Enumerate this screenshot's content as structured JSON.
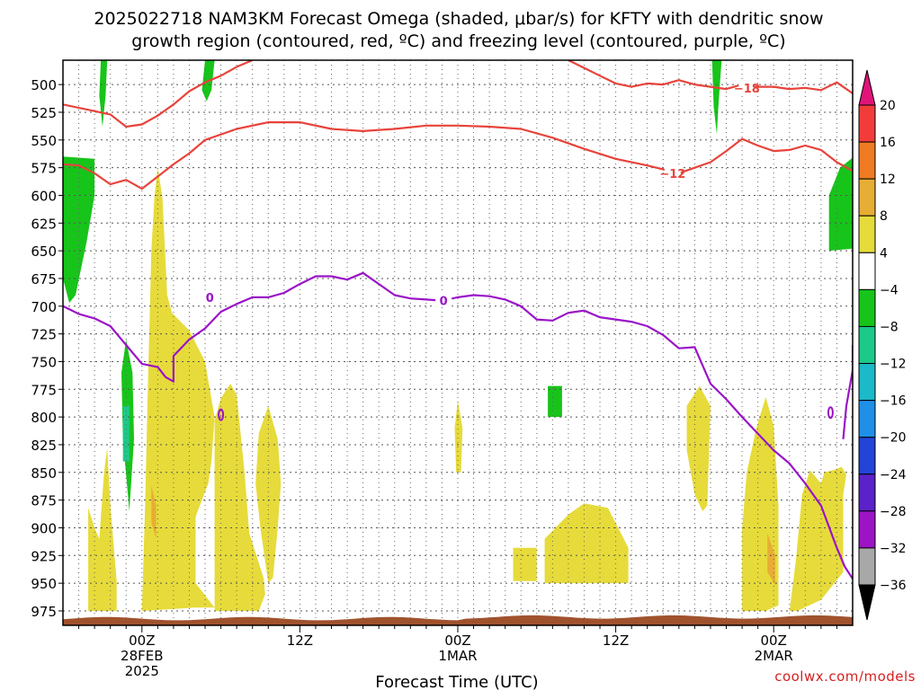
{
  "title_line1": "2025022718 NAM3KM Forecast Omega (shaded, μbar/s) for KFTY with dendritic snow",
  "title_line2": "growth region (contoured, red, ºC) and freezing level (contoured, purple, ºC)",
  "credit": "coolwx.com/models",
  "chart_data": {
    "type": "heatmap",
    "xlabel": "Forecast Time (UTC)",
    "x_range_hours": [
      -5,
      45
    ],
    "x_ticks": [
      {
        "hour": 0,
        "lines": [
          "00Z",
          "28FEB",
          "2025"
        ]
      },
      {
        "hour": 10,
        "lines": [
          "12Z"
        ]
      },
      {
        "hour": 20,
        "lines": [
          "00Z",
          "1MAR"
        ]
      },
      {
        "hour": 30,
        "lines": [
          "12Z"
        ]
      },
      {
        "hour": 40,
        "lines": [
          "00Z",
          "2MAR"
        ]
      }
    ],
    "y_range_hpa": [
      478,
      988
    ],
    "y_ticks": [
      "500",
      "525",
      "550",
      "575",
      "600",
      "625",
      "650",
      "675",
      "700",
      "725",
      "750",
      "775",
      "800",
      "825",
      "850",
      "875",
      "900",
      "925",
      "950",
      "975"
    ],
    "colorbar": {
      "levels": [
        "20",
        "16",
        "12",
        "8",
        "4",
        "−4",
        "−8",
        "−12",
        "−16",
        "−20",
        "−24",
        "−28",
        "−32",
        "−36"
      ],
      "colors": [
        "#e0147a",
        "#f23c3c",
        "#ef7c22",
        "#e8ad35",
        "#e6db3a",
        "#ffffff",
        "#17c41a",
        "#1cc98a",
        "#1cb9c9",
        "#1f8fe8",
        "#2244d8",
        "#5a22c8",
        "#9c14c4",
        "#a8a8a8",
        "#000000"
      ]
    },
    "contours": [
      {
        "label": "−18",
        "color": "#e8433b",
        "points": [
          [
            -5,
            518
          ],
          [
            -3,
            524
          ],
          [
            -2,
            527
          ],
          [
            -1,
            538
          ],
          [
            0,
            536
          ],
          [
            1,
            528
          ],
          [
            2,
            518
          ],
          [
            3,
            506
          ],
          [
            4,
            498
          ],
          [
            5,
            492
          ],
          [
            6,
            484
          ],
          [
            7,
            478
          ]
        ],
        "points2": [
          [
            27,
            478
          ],
          [
            28,
            485
          ],
          [
            29,
            492
          ],
          [
            30,
            499
          ],
          [
            31,
            502
          ],
          [
            32,
            499
          ],
          [
            33,
            500
          ],
          [
            34,
            496
          ],
          [
            35,
            500
          ],
          [
            36,
            502
          ],
          [
            37,
            504
          ],
          [
            38,
            500
          ],
          [
            39,
            502
          ],
          [
            40,
            502
          ],
          [
            41,
            504
          ],
          [
            42,
            503
          ],
          [
            43,
            505
          ],
          [
            44,
            498
          ],
          [
            45,
            508
          ]
        ]
      },
      {
        "label": "−12",
        "color": "#e8433b",
        "points": [
          [
            -5,
            572
          ],
          [
            -4,
            573
          ],
          [
            -3,
            580
          ],
          [
            -2,
            590
          ],
          [
            -1,
            586
          ],
          [
            0,
            594
          ],
          [
            1,
            583
          ],
          [
            2,
            572
          ],
          [
            3,
            562
          ],
          [
            4,
            550
          ],
          [
            6,
            540
          ],
          [
            8,
            534
          ],
          [
            10,
            534
          ],
          [
            12,
            540
          ],
          [
            14,
            542
          ],
          [
            16,
            540
          ],
          [
            18,
            537
          ],
          [
            20,
            537
          ],
          [
            22,
            538
          ],
          [
            24,
            540
          ],
          [
            26,
            548
          ],
          [
            28,
            558
          ],
          [
            30,
            567
          ],
          [
            32,
            573
          ],
          [
            34,
            580
          ],
          [
            36,
            570
          ],
          [
            37,
            560
          ],
          [
            38,
            549
          ],
          [
            39,
            555
          ],
          [
            40,
            560
          ],
          [
            41,
            559
          ],
          [
            42,
            555
          ],
          [
            43,
            559
          ],
          [
            44,
            570
          ],
          [
            45,
            578
          ]
        ]
      },
      {
        "label": "0",
        "color": "#9a14c8",
        "points": [
          [
            -5,
            700
          ],
          [
            -4,
            707
          ],
          [
            -3,
            711
          ],
          [
            -2,
            718
          ],
          [
            -1,
            735
          ],
          [
            0,
            752
          ],
          [
            1,
            755
          ],
          [
            1.5,
            764
          ],
          [
            2,
            768
          ],
          [
            2,
            745
          ],
          [
            3,
            730
          ],
          [
            4,
            720
          ],
          [
            5,
            705
          ],
          [
            6,
            698
          ],
          [
            7,
            692
          ],
          [
            8,
            692
          ],
          [
            9,
            688
          ],
          [
            10,
            680
          ],
          [
            11,
            673
          ],
          [
            12,
            673
          ],
          [
            13,
            676
          ],
          [
            14,
            670
          ],
          [
            15,
            680
          ],
          [
            16,
            690
          ],
          [
            17,
            693
          ],
          [
            18,
            694
          ],
          [
            19,
            695
          ],
          [
            20,
            692
          ],
          [
            21,
            690
          ],
          [
            22,
            691
          ],
          [
            23,
            694
          ],
          [
            24,
            700
          ],
          [
            25,
            712
          ],
          [
            26,
            713
          ],
          [
            27,
            706
          ],
          [
            28,
            704
          ],
          [
            29,
            710
          ],
          [
            30,
            712
          ],
          [
            31,
            714
          ],
          [
            32,
            718
          ],
          [
            33,
            726
          ],
          [
            34,
            738
          ],
          [
            35,
            737
          ],
          [
            36,
            770
          ],
          [
            37,
            784
          ],
          [
            38,
            800
          ],
          [
            39,
            815
          ],
          [
            40,
            830
          ],
          [
            41,
            842
          ],
          [
            42,
            860
          ],
          [
            43,
            880
          ],
          [
            44,
            918
          ],
          [
            44.5,
            935
          ],
          [
            45,
            946
          ]
        ]
      }
    ],
    "omega_regions": [
      {
        "value": -8,
        "color": "#17c41a",
        "polygon": [
          [
            -5,
            565
          ],
          [
            -3,
            567
          ],
          [
            -3,
            600
          ],
          [
            -3.5,
            642
          ],
          [
            -4.2,
            690
          ],
          [
            -4.6,
            697
          ],
          [
            -5,
            675
          ]
        ]
      },
      {
        "value": -8,
        "color": "#17c41a",
        "polygon": [
          [
            -2.6,
            478
          ],
          [
            -2.2,
            478
          ],
          [
            -2.3,
            510
          ],
          [
            -2.5,
            538
          ],
          [
            -2.7,
            510
          ]
        ]
      },
      {
        "value": -8,
        "color": "#17c41a",
        "polygon": [
          [
            4,
            478
          ],
          [
            4.6,
            478
          ],
          [
            4.4,
            505
          ],
          [
            4.1,
            515
          ],
          [
            3.8,
            505
          ]
        ]
      },
      {
        "value": -8,
        "color": "#17c41a",
        "polygon": [
          [
            -1,
            730
          ],
          [
            -0.6,
            760
          ],
          [
            -0.5,
            820
          ],
          [
            -0.8,
            885
          ],
          [
            -1.2,
            820
          ],
          [
            -1.3,
            760
          ]
        ]
      },
      {
        "value": -8,
        "color": "#17c41a",
        "polygon": [
          [
            36.1,
            478
          ],
          [
            36.7,
            478
          ],
          [
            36.5,
            520
          ],
          [
            36.4,
            545
          ],
          [
            36.2,
            520
          ]
        ]
      },
      {
        "value": -8,
        "color": "#17c41a",
        "polygon": [
          [
            43.5,
            600
          ],
          [
            44.2,
            575
          ],
          [
            45,
            566
          ],
          [
            45,
            648
          ],
          [
            43.5,
            650
          ]
        ]
      },
      {
        "value": -8,
        "color": "#17c41a",
        "polygon": [
          [
            25.7,
            772
          ],
          [
            26.6,
            772
          ],
          [
            26.6,
            800
          ],
          [
            25.7,
            800
          ]
        ]
      },
      {
        "value": 4,
        "color": "#e6db3a",
        "polygon": [
          [
            -3.4,
            882
          ],
          [
            -3,
            900
          ],
          [
            -2.7,
            910
          ],
          [
            -2.4,
            850
          ],
          [
            -2.2,
            828
          ],
          [
            -2,
            880
          ],
          [
            -1.6,
            948
          ],
          [
            -1.6,
            975
          ],
          [
            -3.4,
            975
          ]
        ]
      },
      {
        "value": 4,
        "color": "#e6db3a",
        "polygon": [
          [
            0,
            975
          ],
          [
            0.2,
            880
          ],
          [
            0.4,
            760
          ],
          [
            0.6,
            650
          ],
          [
            0.8,
            600
          ],
          [
            1,
            575
          ],
          [
            1.3,
            602
          ],
          [
            1.6,
            690
          ],
          [
            1.9,
            706
          ],
          [
            3,
            722
          ],
          [
            4,
            750
          ],
          [
            4.6,
            800
          ],
          [
            4.4,
            840
          ],
          [
            4.2,
            860
          ],
          [
            3.4,
            890
          ],
          [
            3.4,
            950
          ],
          [
            4.6,
            972
          ],
          [
            3.4,
            972
          ]
        ]
      },
      {
        "value": 4,
        "color": "#e6db3a",
        "polygon": [
          [
            4.6,
            803
          ],
          [
            5,
            783
          ],
          [
            5.6,
            770
          ],
          [
            6,
            780
          ],
          [
            6.5,
            850
          ],
          [
            6.8,
            905
          ],
          [
            7.7,
            945
          ],
          [
            7.8,
            960
          ],
          [
            7.4,
            975
          ],
          [
            4.6,
            975
          ]
        ]
      },
      {
        "value": 4,
        "color": "#e6db3a",
        "polygon": [
          [
            7.4,
            815
          ],
          [
            8,
            790
          ],
          [
            8.6,
            820
          ],
          [
            8.8,
            860
          ],
          [
            8.6,
            900
          ],
          [
            8.3,
            945
          ],
          [
            8,
            950
          ],
          [
            7.5,
            900
          ],
          [
            7.2,
            860
          ]
        ]
      },
      {
        "value": 4,
        "color": "#e6db3a",
        "polygon": [
          [
            20,
            785
          ],
          [
            20.3,
            810
          ],
          [
            20.2,
            850
          ],
          [
            19.9,
            850
          ],
          [
            19.8,
            810
          ]
        ]
      },
      {
        "value": 4,
        "color": "#e6db3a",
        "polygon": [
          [
            23.5,
            918
          ],
          [
            25,
            918
          ],
          [
            25,
            948
          ],
          [
            23.5,
            948
          ]
        ]
      },
      {
        "value": 4,
        "color": "#e6db3a",
        "polygon": [
          [
            25.5,
            910
          ],
          [
            27,
            888
          ],
          [
            28,
            878
          ],
          [
            29.5,
            882
          ],
          [
            30.8,
            918
          ],
          [
            30.8,
            950
          ],
          [
            25.5,
            950
          ]
        ]
      },
      {
        "value": 4,
        "color": "#e6db3a",
        "polygon": [
          [
            34.5,
            790
          ],
          [
            35.3,
            772
          ],
          [
            36,
            790
          ],
          [
            35.8,
            880
          ],
          [
            35.5,
            885
          ],
          [
            35,
            870
          ],
          [
            34.5,
            830
          ]
        ]
      },
      {
        "value": 4,
        "color": "#e6db3a",
        "polygon": [
          [
            38,
            975
          ],
          [
            38,
            900
          ],
          [
            38.3,
            850
          ],
          [
            38.9,
            810
          ],
          [
            39.5,
            782
          ],
          [
            40,
            808
          ],
          [
            40.3,
            880
          ],
          [
            40.3,
            970
          ],
          [
            39.5,
            975
          ]
        ]
      },
      {
        "value": 4,
        "color": "#e6db3a",
        "polygon": [
          [
            41,
            975
          ],
          [
            41.4,
            930
          ],
          [
            41.8,
            870
          ],
          [
            42.3,
            848
          ],
          [
            43,
            860
          ],
          [
            43.2,
            850
          ],
          [
            43.8,
            848
          ],
          [
            44.3,
            845
          ],
          [
            44.6,
            852
          ],
          [
            44.4,
            870
          ],
          [
            44.4,
            940
          ],
          [
            43,
            965
          ],
          [
            41.5,
            975
          ]
        ]
      },
      {
        "value": 12,
        "color": "#e8ad35",
        "polygon": [
          [
            0.6,
            862
          ],
          [
            0.9,
            880
          ],
          [
            0.9,
            910
          ],
          [
            0.6,
            895
          ]
        ]
      },
      {
        "value": 12,
        "color": "#e8ad35",
        "polygon": [
          [
            39.6,
            905
          ],
          [
            40.1,
            925
          ],
          [
            40.1,
            952
          ],
          [
            39.6,
            940
          ]
        ]
      },
      {
        "value": -12,
        "color": "#1cc98a",
        "polygon": [
          [
            -1.2,
            790
          ],
          [
            -0.8,
            790
          ],
          [
            -0.8,
            840
          ],
          [
            -1.2,
            840
          ]
        ]
      }
    ],
    "terrain_color": "#a0522d"
  }
}
